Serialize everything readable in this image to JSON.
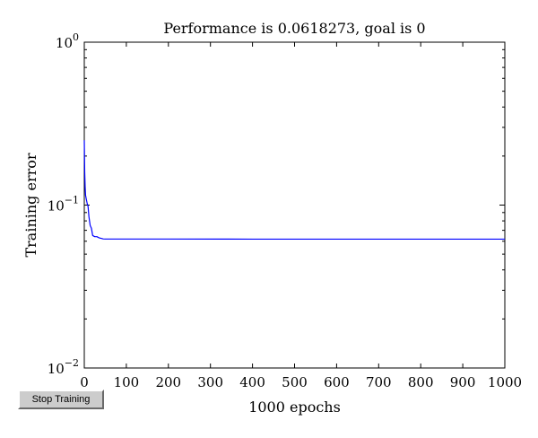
{
  "controls": {
    "stop_training_label": "Stop Training"
  },
  "colors": {
    "series": "#0000ff",
    "axes": "#000000",
    "button_face": "#cccccc"
  },
  "chart_data": {
    "type": "line",
    "title": "Performance is 0.0618273, goal is 0",
    "xlabel": "1000 epochs",
    "ylabel": "Training error",
    "y_scale": "log",
    "xlim": [
      0,
      1000
    ],
    "ylim": [
      0.01,
      1
    ],
    "grid": false,
    "x_ticks": [
      0,
      100,
      200,
      300,
      400,
      500,
      600,
      700,
      800,
      900,
      1000
    ],
    "x_tick_labels": [
      "0",
      "100",
      "200",
      "300",
      "400",
      "500",
      "600",
      "700",
      "800",
      "900",
      "1000"
    ],
    "y_ticks": [
      1,
      0.1,
      0.01
    ],
    "y_tick_labels": [
      {
        "base": "10",
        "exp": "0"
      },
      {
        "base": "10",
        "exp": "−1"
      },
      {
        "base": "10",
        "exp": "−2"
      }
    ],
    "series": [
      {
        "x": [
          0,
          1,
          2,
          3,
          5,
          7,
          9,
          11,
          14,
          17,
          20,
          25,
          30,
          35,
          40,
          45,
          50,
          100,
          200,
          400,
          600,
          800,
          1000
        ],
        "y": [
          0.25,
          0.16,
          0.13,
          0.115,
          0.108,
          0.102,
          0.098,
          0.085,
          0.075,
          0.072,
          0.065,
          0.064,
          0.064,
          0.063,
          0.0625,
          0.062,
          0.0619,
          0.0619,
          0.0619,
          0.0618,
          0.0618,
          0.0618,
          0.0618
        ]
      }
    ]
  }
}
